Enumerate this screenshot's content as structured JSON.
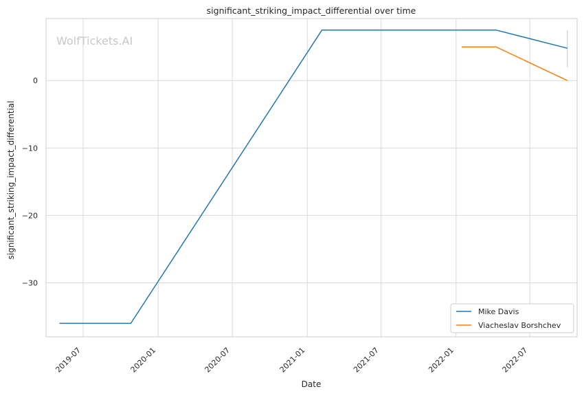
{
  "chart_data": {
    "type": "line",
    "title": "significant_striking_impact_differential over time",
    "xlabel": "Date",
    "ylabel": "significant_striking_impact_differential",
    "watermark": "WolfTickets.AI",
    "x_ticks": [
      "2019-07",
      "2020-01",
      "2020-07",
      "2021-01",
      "2021-07",
      "2022-01",
      "2022-07"
    ],
    "y_ticks": [
      {
        "value": 0,
        "label": "0"
      },
      {
        "value": -10,
        "label": "−10"
      },
      {
        "value": -20,
        "label": "−20"
      },
      {
        "value": -30,
        "label": "−30"
      }
    ],
    "xlim": [
      "2019-04-01",
      "2022-10-25"
    ],
    "ylim": [
      -38,
      9.2
    ],
    "grid": true,
    "legend_position": "bottom-right",
    "series": [
      {
        "name": "Mike Davis",
        "color": "#1f77b4",
        "points": [
          {
            "x": "2019-05-04",
            "y": -36.0
          },
          {
            "x": "2019-10-26",
            "y": -36.0
          },
          {
            "x": "2021-02-06",
            "y": 7.5
          },
          {
            "x": "2022-04-09",
            "y": 7.5
          },
          {
            "x": "2022-10-01",
            "y": 4.8
          }
        ]
      },
      {
        "name": "Viacheslav Borshchev",
        "color": "#ff7f0e",
        "points": [
          {
            "x": "2022-01-15",
            "y": 5.0
          },
          {
            "x": "2022-04-09",
            "y": 5.0
          },
          {
            "x": "2022-10-01",
            "y": 0.0
          }
        ]
      }
    ],
    "error_bar": {
      "x": "2022-10-01",
      "low": 2.0,
      "high": 7.5,
      "color": "#aec7e8"
    }
  }
}
